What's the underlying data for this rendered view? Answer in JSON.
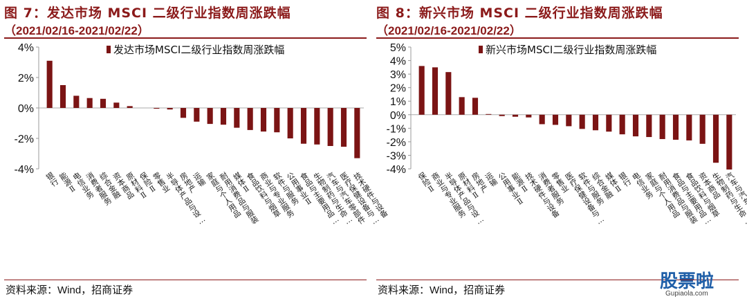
{
  "figures": [
    {
      "title": "图 7：发达市场 MSCI 二级行业指数周涨跌幅",
      "date_range": "（2021/02/16-2021/02/22）",
      "source": "资料来源：Wind，招商证券",
      "chart_data": {
        "type": "bar",
        "legend": "发达市场MSCI二级行业指数周涨跌幅",
        "legend_position": "top-right",
        "ylim": [
          -4,
          4
        ],
        "ytick_labels": [
          "4%",
          "2%",
          "0%",
          "-2%",
          "-4%"
        ],
        "ytick_values": [
          4,
          2,
          0,
          -2,
          -4
        ],
        "color": "#7b1414",
        "categories": [
          "银行",
          "能源Ⅱ",
          "电信业务",
          "消费者服务",
          "综合金融",
          "资本商品",
          "原材料Ⅱ",
          "保险Ⅱ",
          "零售业",
          "半导体产品与设…",
          "房地产",
          "运输",
          "家庭与个人用品",
          "耐用消费品与服装",
          "媒体Ⅱ",
          "食品饮料与烟草",
          "商业与专业服务",
          "软件与服务",
          "公用事业Ⅱ",
          "食品与主要用品…",
          "生物制药与生命…",
          "汽车与汽车零部件",
          "医疗保健设备与…",
          "技术硬件与设备"
        ],
        "values": [
          3.1,
          1.5,
          0.8,
          0.65,
          0.6,
          0.35,
          0.12,
          0.0,
          -0.05,
          -0.1,
          -0.65,
          -0.9,
          -1.05,
          -1.1,
          -1.3,
          -1.45,
          -1.55,
          -1.6,
          -2.0,
          -2.35,
          -2.4,
          -2.5,
          -2.55,
          -3.3
        ]
      }
    },
    {
      "title": "图 8：新兴市场 MSCI 二级行业指数周涨跌幅",
      "date_range": "（2021/02/16-2021/02/22）",
      "source": "资料来源：Wind，招商证券",
      "chart_data": {
        "type": "bar",
        "legend": "新兴市场MSCI二级行业指数周涨跌幅",
        "legend_position": "top-right",
        "ylim": [
          -4,
          5
        ],
        "ytick_labels": [
          "5%",
          "4%",
          "3%",
          "2%",
          "1%",
          "0%",
          "-1%",
          "-2%",
          "-3%",
          "-4%"
        ],
        "ytick_values": [
          5,
          4,
          3,
          2,
          1,
          0,
          -1,
          -2,
          -3,
          -4
        ],
        "color": "#7b1414",
        "categories": [
          "保险Ⅱ",
          "商业与专业服务",
          "半导体产品与设…",
          "原材料Ⅱ",
          "房地产",
          "运输",
          "公用事业Ⅱ",
          "能源Ⅱ",
          "技术硬件与设备",
          "消费者服务",
          "零售业",
          "医疗保健设备与…",
          "软件与服务",
          "综合金融",
          "媒体Ⅱ",
          "银行",
          "电信业务",
          "家庭与个人用品",
          "耐用消费品与服装",
          "食品与主要用品…",
          "食品饮料与烟草",
          "资本商品",
          "生物制药与生命…",
          "汽车与汽车零部件"
        ],
        "values": [
          3.6,
          3.5,
          3.15,
          1.3,
          1.25,
          0.05,
          -0.1,
          -0.15,
          -0.2,
          -0.7,
          -0.75,
          -0.85,
          -1.05,
          -1.15,
          -1.25,
          -1.45,
          -1.6,
          -1.65,
          -1.8,
          -1.85,
          -1.9,
          -2.15,
          -3.55,
          -4.05
        ]
      }
    }
  ],
  "watermark": {
    "text": "股票啦",
    "subtext": "Gupiaola.com"
  }
}
